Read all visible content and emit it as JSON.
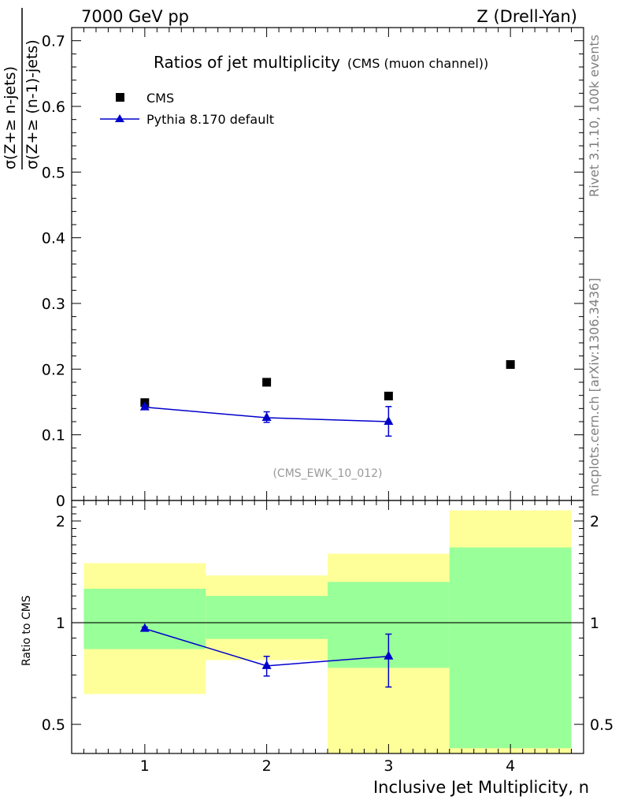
{
  "header": {
    "left": "7000 GeV pp",
    "right": "Z (Drell-Yan)"
  },
  "side_labels": {
    "rivet": "Rivet 3.1.10,  100k events",
    "mcplots": "mcplots.cern.ch [arXiv:1306.3436]"
  },
  "chart_data": [
    {
      "panel": "main",
      "type": "scatter",
      "title": "Ratios of jet multiplicity",
      "subtitle": "(CMS (muon channel))",
      "analysis_label": "(CMS_EWK_10_012)",
      "ylabel_numerator": "σ(Z+≥ n-jets)",
      "ylabel_denominator": "σ(Z+≥ (n-1)-jets)",
      "xlim": [
        0.4,
        4.6
      ],
      "ylim": [
        0,
        0.72
      ],
      "yticks": [
        0,
        0.1,
        0.2,
        0.3,
        0.4,
        0.5,
        0.6,
        0.7
      ],
      "ytick_labels": [
        "0",
        "0.1",
        "0.2",
        "0.3",
        "0.4",
        "0.5",
        "0.6",
        "0.7"
      ],
      "legend_position": "top-left",
      "series": [
        {
          "name": "CMS",
          "marker": "square",
          "color": "#000000",
          "x": [
            1,
            2,
            3,
            4
          ],
          "y": [
            0.149,
            0.18,
            0.159,
            0.207
          ]
        },
        {
          "name": "Pythia 8.170 default",
          "marker": "triangle",
          "color": "#0000cc",
          "line": true,
          "x": [
            1,
            2,
            3
          ],
          "y": [
            0.142,
            0.126,
            0.12
          ],
          "yerr_low": [
            0.003,
            0.007,
            0.022
          ],
          "yerr_high": [
            0.003,
            0.009,
            0.023
          ]
        }
      ]
    },
    {
      "panel": "ratio",
      "type": "scatter",
      "ylabel": "Ratio to CMS",
      "xlabel": "Inclusive Jet Multiplicity, n",
      "xlim": [
        0.4,
        4.6
      ],
      "ylim": [
        0.41,
        2.3
      ],
      "log_y": true,
      "xticks": [
        1,
        2,
        3,
        4
      ],
      "xtick_labels": [
        "1",
        "2",
        "3",
        "4"
      ],
      "yticks": [
        0.5,
        1,
        2
      ],
      "ytick_labels": [
        "0.5",
        "1",
        "2"
      ],
      "reference_line": 1,
      "bands": [
        {
          "x": [
            0.5,
            1.5
          ],
          "yellow": [
            0.615,
            1.5
          ],
          "green": [
            0.835,
            1.26
          ]
        },
        {
          "x": [
            1.5,
            2.5
          ],
          "yellow": [
            0.775,
            1.38
          ],
          "green": [
            0.895,
            1.2
          ]
        },
        {
          "x": [
            2.5,
            3.5
          ],
          "yellow": [
            0.4,
            1.6
          ],
          "green": [
            0.735,
            1.32
          ]
        },
        {
          "x": [
            3.5,
            4.5
          ],
          "yellow": [
            0.4,
            2.15
          ],
          "green": [
            0.425,
            1.67
          ]
        }
      ],
      "band_colors": {
        "yellow": "#ffff99",
        "green": "#99ff99"
      },
      "series": [
        {
          "name": "Pythia 8.170 default",
          "marker": "triangle",
          "color": "#0000cc",
          "line": true,
          "x": [
            1,
            2,
            3
          ],
          "y": [
            0.96,
            0.745,
            0.795
          ],
          "yerr_low": [
            0.01,
            0.05,
            0.15
          ],
          "yerr_high": [
            0.01,
            0.05,
            0.13
          ]
        }
      ]
    }
  ]
}
